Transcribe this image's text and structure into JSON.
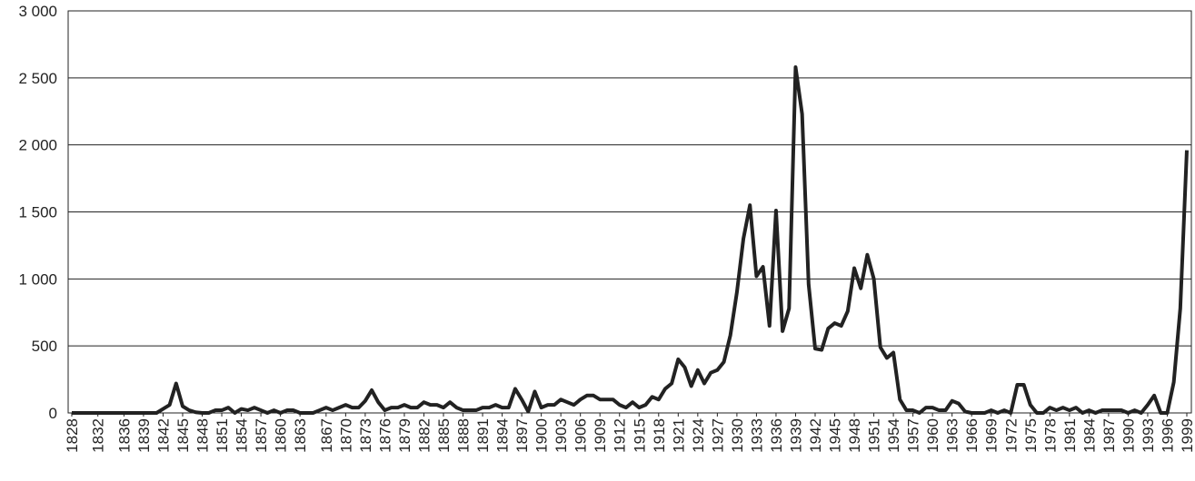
{
  "chart_data": {
    "type": "line",
    "x": [
      1828,
      1829,
      1830,
      1831,
      1832,
      1833,
      1834,
      1835,
      1836,
      1837,
      1838,
      1839,
      1840,
      1841,
      1842,
      1843,
      1844,
      1845,
      1846,
      1847,
      1848,
      1849,
      1850,
      1851,
      1852,
      1853,
      1854,
      1855,
      1856,
      1857,
      1858,
      1859,
      1860,
      1861,
      1862,
      1863,
      1864,
      1865,
      1866,
      1867,
      1868,
      1869,
      1870,
      1871,
      1872,
      1873,
      1874,
      1875,
      1876,
      1877,
      1878,
      1879,
      1880,
      1881,
      1882,
      1883,
      1884,
      1885,
      1886,
      1887,
      1888,
      1889,
      1890,
      1891,
      1892,
      1893,
      1894,
      1895,
      1896,
      1897,
      1898,
      1899,
      1900,
      1901,
      1902,
      1903,
      1904,
      1905,
      1906,
      1907,
      1908,
      1909,
      1910,
      1911,
      1912,
      1913,
      1914,
      1915,
      1916,
      1917,
      1918,
      1919,
      1920,
      1921,
      1922,
      1923,
      1924,
      1925,
      1926,
      1927,
      1928,
      1929,
      1930,
      1931,
      1932,
      1933,
      1934,
      1935,
      1936,
      1937,
      1938,
      1939,
      1940,
      1941,
      1942,
      1943,
      1944,
      1945,
      1946,
      1947,
      1948,
      1949,
      1950,
      1951,
      1952,
      1953,
      1954,
      1955,
      1956,
      1957,
      1958,
      1959,
      1960,
      1961,
      1962,
      1963,
      1964,
      1965,
      1966,
      1967,
      1968,
      1969,
      1970,
      1971,
      1972,
      1973,
      1974,
      1975,
      1976,
      1977,
      1978,
      1979,
      1980,
      1981,
      1982,
      1983,
      1984,
      1985,
      1986,
      1987,
      1988,
      1989,
      1990,
      1991,
      1992,
      1993,
      1994,
      1995,
      1996,
      1997,
      1998,
      1999
    ],
    "series": [
      {
        "color": "#222222",
        "values": [
          0,
          0,
          0,
          0,
          0,
          0,
          0,
          0,
          0,
          0,
          0,
          0,
          0,
          0,
          30,
          60,
          220,
          50,
          20,
          5,
          0,
          0,
          20,
          20,
          40,
          0,
          30,
          20,
          40,
          20,
          0,
          20,
          0,
          20,
          20,
          0,
          0,
          0,
          20,
          40,
          20,
          40,
          60,
          40,
          40,
          90,
          170,
          80,
          20,
          40,
          40,
          60,
          40,
          40,
          80,
          60,
          60,
          40,
          80,
          40,
          20,
          20,
          20,
          40,
          40,
          60,
          40,
          40,
          180,
          100,
          10,
          160,
          40,
          60,
          60,
          100,
          80,
          60,
          100,
          130,
          130,
          100,
          100,
          100,
          60,
          40,
          80,
          40,
          60,
          120,
          100,
          180,
          220,
          400,
          340,
          200,
          320,
          220,
          300,
          320,
          380,
          580,
          900,
          1300,
          1550,
          1020,
          1090,
          650,
          1510,
          610,
          780,
          2580,
          2230,
          960,
          480,
          470,
          630,
          670,
          650,
          760,
          1080,
          930,
          1180,
          1000,
          490,
          410,
          450,
          100,
          20,
          20,
          0,
          40,
          40,
          20,
          20,
          90,
          70,
          10,
          0,
          0,
          0,
          20,
          0,
          20,
          0,
          210,
          210,
          60,
          0,
          0,
          40,
          20,
          40,
          20,
          40,
          0,
          20,
          0,
          20,
          20,
          20,
          20,
          0,
          20,
          0,
          60,
          130,
          0,
          0,
          230,
          780,
          1960
        ]
      }
    ],
    "xlim": [
      1828,
      1999
    ],
    "xticks": [
      1828,
      1832,
      1836,
      1839,
      1842,
      1845,
      1848,
      1851,
      1854,
      1857,
      1860,
      1863,
      1867,
      1870,
      1873,
      1876,
      1879,
      1882,
      1885,
      1888,
      1891,
      1894,
      1897,
      1900,
      1903,
      1906,
      1909,
      1912,
      1915,
      1918,
      1921,
      1924,
      1927,
      1930,
      1933,
      1936,
      1939,
      1942,
      1945,
      1948,
      1951,
      1954,
      1957,
      1960,
      1963,
      1966,
      1969,
      1972,
      1975,
      1978,
      1981,
      1984,
      1987,
      1990,
      1993,
      1996,
      1999
    ],
    "ylim": [
      0,
      3000
    ],
    "yticks": [
      0,
      500,
      {
        "value": 1000,
        "label": "1 000"
      },
      {
        "value": 1500,
        "label": "1 500"
      },
      {
        "value": 2000,
        "label": "2 000"
      },
      {
        "value": 2500,
        "label": "2 500"
      },
      {
        "value": 3000,
        "label": "3 000"
      }
    ],
    "grid": true
  }
}
